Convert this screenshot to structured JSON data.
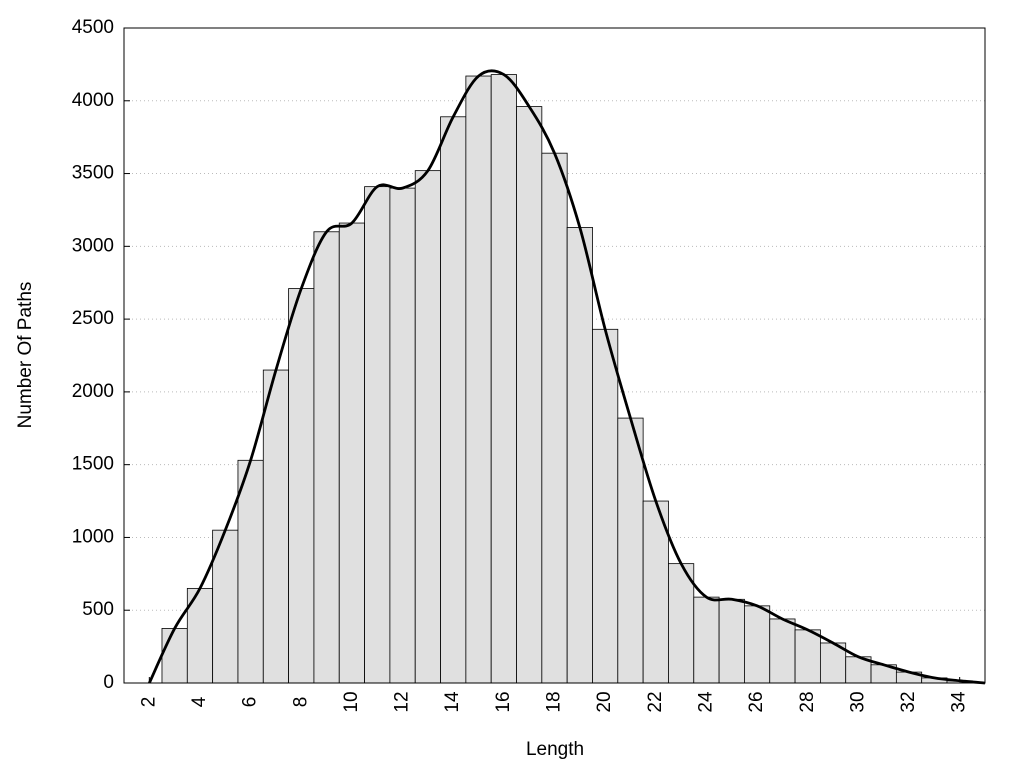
{
  "chart_data": {
    "type": "histogram",
    "xlabel": "Length",
    "ylabel": "Number Of Paths",
    "bins": [
      2.5,
      3.5,
      4.5,
      5.5,
      6.5,
      7.5,
      8.5,
      9.5,
      10.5,
      11.5,
      12.5,
      13.5,
      14.5,
      15.5,
      16.5,
      17.5,
      18.5,
      19.5,
      20.5,
      21.5,
      22.5,
      23.5,
      24.5,
      25.5,
      26.5,
      27.5,
      28.5,
      29.5,
      30.5,
      31.5,
      32.5,
      33.5,
      34.5
    ],
    "values": [
      375,
      650,
      1050,
      1530,
      2150,
      2710,
      3100,
      3160,
      3410,
      3400,
      3520,
      3890,
      4170,
      4180,
      3960,
      3640,
      3130,
      2430,
      1820,
      1250,
      820,
      590,
      575,
      530,
      440,
      365,
      275,
      180,
      125,
      75,
      35,
      15
    ],
    "bar_color": "#e0e0e0",
    "line": {
      "color": "#000000",
      "x": [
        2,
        3,
        4,
        5,
        6,
        7,
        8,
        9,
        10,
        11,
        12,
        13,
        14,
        15,
        16,
        17,
        18,
        19,
        20,
        21,
        22,
        23,
        24,
        25,
        26,
        27,
        28,
        29,
        30,
        31,
        32,
        33,
        34,
        35
      ],
      "values": [
        0,
        375,
        650,
        1050,
        1530,
        2150,
        2710,
        3100,
        3160,
        3410,
        3400,
        3520,
        3890,
        4170,
        4180,
        3960,
        3640,
        3130,
        2430,
        1820,
        1250,
        820,
        590,
        575,
        530,
        440,
        365,
        275,
        180,
        125,
        75,
        35,
        15,
        0
      ]
    },
    "xlim": [
      1,
      35
    ],
    "xticks": [
      2,
      4,
      6,
      8,
      10,
      12,
      14,
      16,
      18,
      20,
      22,
      24,
      26,
      28,
      30,
      32,
      34
    ],
    "ylim": [
      0,
      4500
    ],
    "yticks": [
      0,
      500,
      1000,
      1500,
      2000,
      2500,
      3000,
      3500,
      4000,
      4500
    ],
    "grid": true
  }
}
